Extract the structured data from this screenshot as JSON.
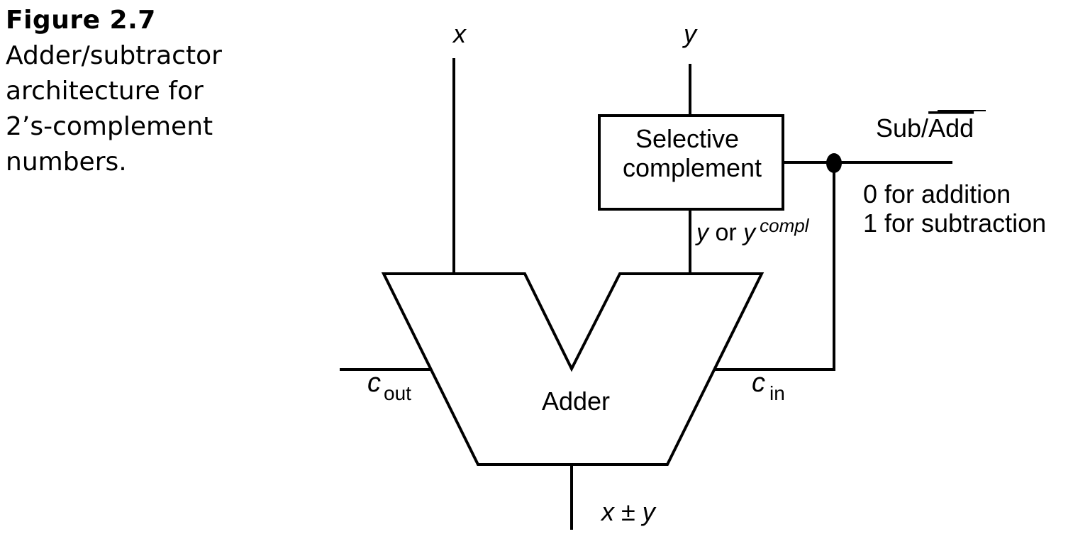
{
  "caption": {
    "figure_number": "Figure 2.7",
    "lines": [
      "Adder/subtractor",
      "architecture for",
      "2’s-complement",
      "numbers."
    ]
  },
  "diagram": {
    "input_x": "x",
    "input_y": "y",
    "selective_complement": {
      "line1": "Selective",
      "line2": "complement"
    },
    "control": {
      "prefix": "Sub/",
      "overlined": "Add",
      "note_addition": "0 for addition",
      "note_subtraction": "1 for subtraction"
    },
    "mux_out": {
      "y": "y",
      "or": " or ",
      "y2": "y",
      "sup": "compl"
    },
    "adder_label": "Adder",
    "carry_out": {
      "c": "c",
      "sub": "out"
    },
    "carry_in": {
      "c": "c",
      "sub": "in"
    },
    "output": {
      "x": "x",
      "pm": " ± ",
      "y": "y"
    }
  }
}
